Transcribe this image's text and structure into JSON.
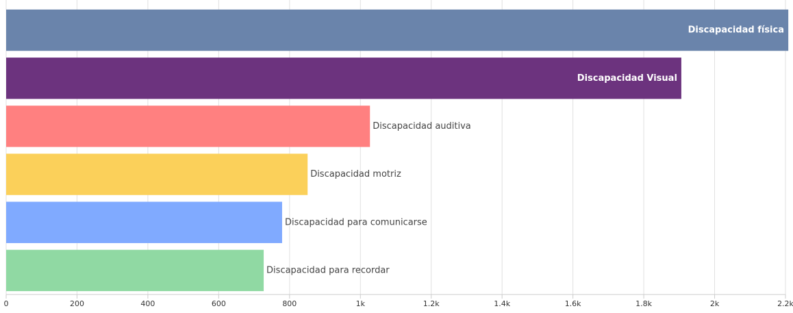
{
  "chart_data": {
    "type": "bar",
    "orientation": "horizontal",
    "categories": [
      "Discapacidad física",
      "Discapacidad Visual",
      "Discapacidad auditiva",
      "Discapacidad motriz",
      "Discapacidad para comunicarse",
      "Discapacidad para recordar"
    ],
    "values": [
      2208,
      1906,
      1027,
      851,
      779,
      727
    ],
    "colors": [
      "#6a84ab",
      "#6c337e",
      "#ff8080",
      "#fbd05a",
      "#80aaff",
      "#90d9a3"
    ],
    "xlim": [
      0,
      2200
    ],
    "xticks": [
      0,
      200,
      400,
      600,
      800,
      {
        "value": 1000,
        "label": "1k"
      },
      {
        "value": 1200,
        "label": "1.2k"
      },
      {
        "value": 1400,
        "label": "1.4k"
      },
      {
        "value": 1600,
        "label": "1.6k"
      },
      {
        "value": 1800,
        "label": "1.8k"
      },
      {
        "value": 2000,
        "label": "2k"
      },
      {
        "value": 2200,
        "label": "2.2k"
      }
    ],
    "grid": true
  }
}
